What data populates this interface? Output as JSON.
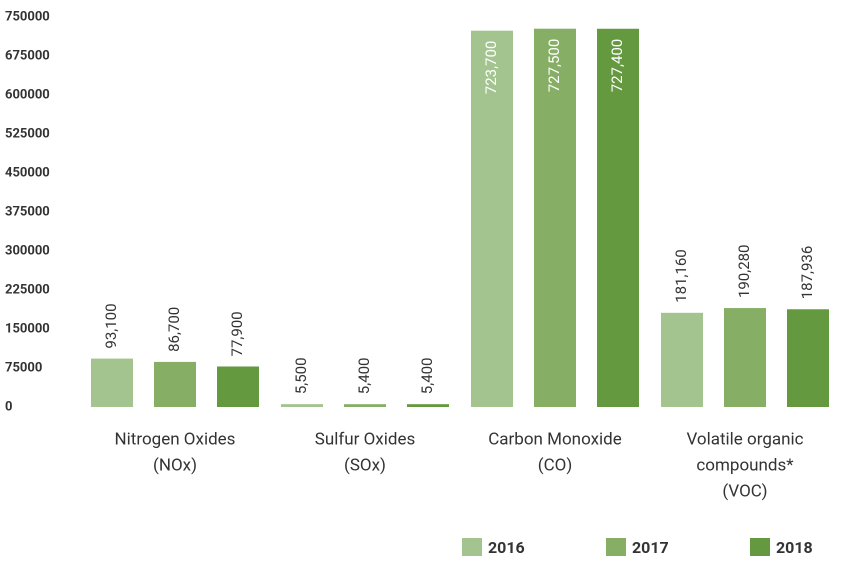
{
  "chart_data": {
    "type": "bar",
    "categories": [
      [
        "Nitrogen Oxides",
        "(NOx)"
      ],
      [
        "Sulfur Oxides",
        "(SOx)"
      ],
      [
        "Carbon Monoxide",
        "(CO)"
      ],
      [
        "Volatile organic",
        "compounds*",
        "(VOC)"
      ]
    ],
    "series": [
      {
        "name": "2016",
        "color": "#a3c48e",
        "values": [
          93100,
          5500,
          723700,
          181160
        ],
        "value_labels": [
          "93,100",
          "5,500",
          "723,700",
          "181,160"
        ]
      },
      {
        "name": "2017",
        "color": "#86ae65",
        "values": [
          86700,
          5400,
          727500,
          190280
        ],
        "value_labels": [
          "86,700",
          "5,400",
          "727,500",
          "190,280"
        ]
      },
      {
        "name": "2018",
        "color": "#64993f",
        "values": [
          77900,
          5400,
          727400,
          187936
        ],
        "value_labels": [
          "77,900",
          "5,400",
          "727,400",
          "187,936"
        ]
      }
    ],
    "ylim": [
      0,
      750000
    ],
    "yticks": [
      0,
      75000,
      150000,
      225000,
      300000,
      375000,
      450000,
      525000,
      600000,
      675000,
      750000
    ],
    "legend": "bottom-right"
  }
}
